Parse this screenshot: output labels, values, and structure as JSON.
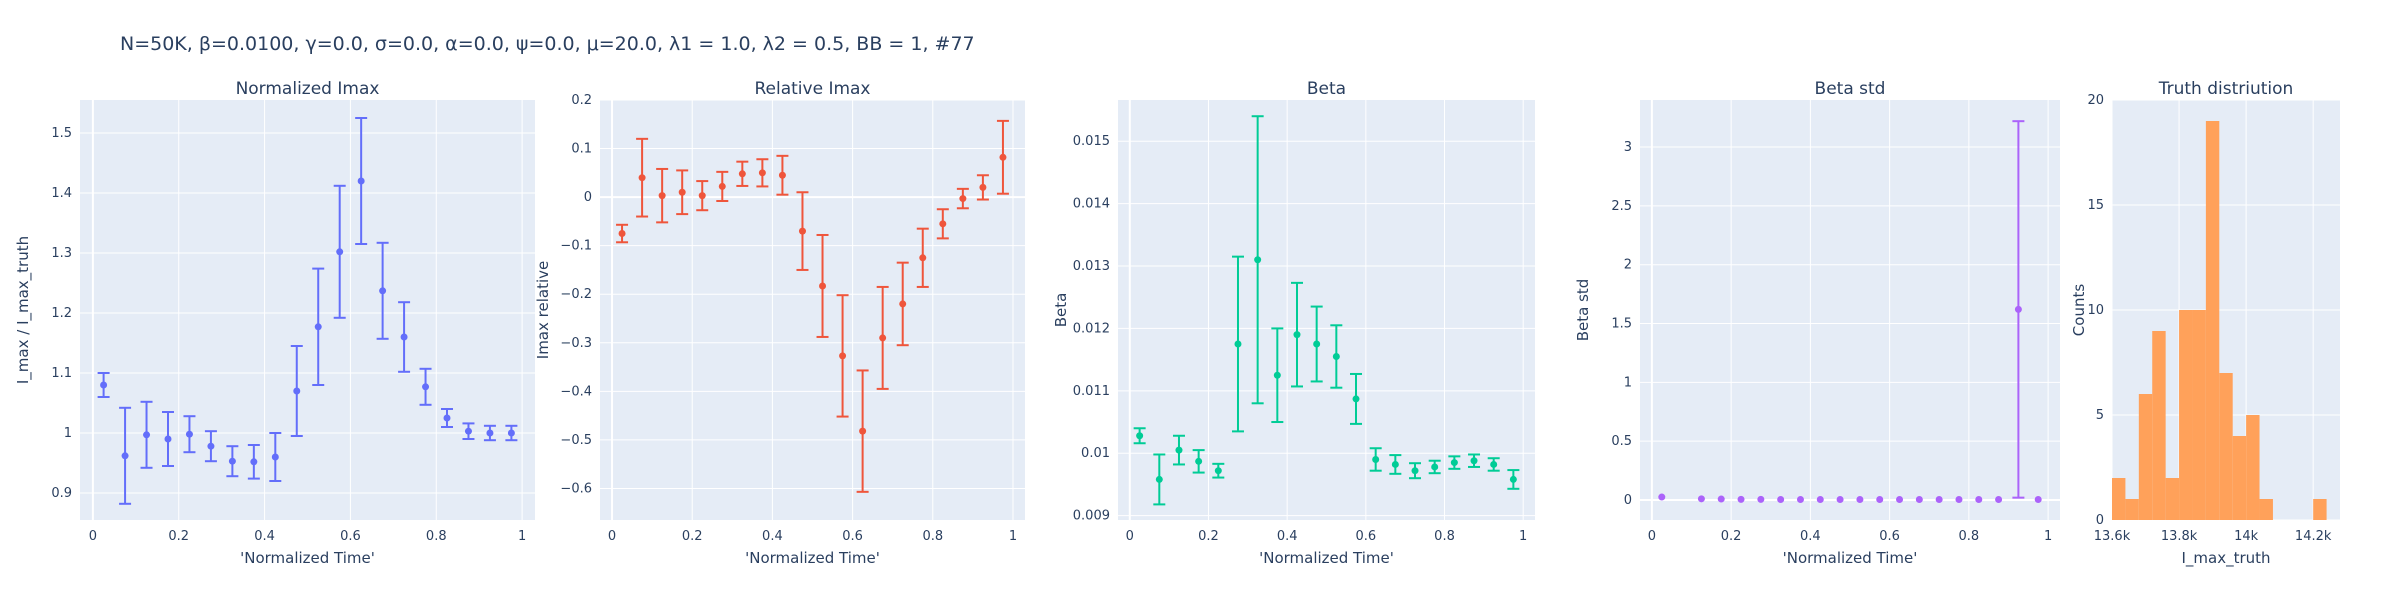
{
  "figure_title": "N=50K, β=0.0100, γ=0.0, σ=0.0,  α=0.0, ψ=0.0, μ=20.0, λ1 = 1.0, λ2 = 0.5, BB = 1, #77",
  "chart_data": [
    {
      "type": "scatter",
      "title": "Normalized Imax",
      "xlabel": "'Normalized Time'",
      "ylabel": "I_max / I_max_truth",
      "color": "#636efa",
      "xlim": [
        -0.03,
        1.03
      ],
      "ylim": [
        0.855,
        1.555
      ],
      "xticks": [
        0,
        0.2,
        0.4,
        0.6,
        0.8,
        1
      ],
      "xticklabels": [
        "0",
        "0.2",
        "0.4",
        "0.6",
        "0.8",
        "1"
      ],
      "yticks": [
        0.9,
        1,
        1.1,
        1.2,
        1.3,
        1.4,
        1.5
      ],
      "yticklabels": [
        "0.9",
        "1",
        "1.1",
        "1.2",
        "1.3",
        "1.4",
        "1.5"
      ],
      "x": [
        0.025,
        0.075,
        0.125,
        0.175,
        0.225,
        0.275,
        0.325,
        0.375,
        0.425,
        0.475,
        0.525,
        0.575,
        0.625,
        0.675,
        0.725,
        0.775,
        0.825,
        0.875,
        0.925,
        0.975
      ],
      "y": [
        1.08,
        0.962,
        0.997,
        0.99,
        0.998,
        0.978,
        0.953,
        0.952,
        0.96,
        1.07,
        1.177,
        1.302,
        1.42,
        1.237,
        1.16,
        1.077,
        1.025,
        1.003,
        1.0,
        1.0
      ],
      "err": [
        0.02,
        0.08,
        0.055,
        0.045,
        0.03,
        0.025,
        0.025,
        0.028,
        0.04,
        0.075,
        0.097,
        0.11,
        0.105,
        0.08,
        0.058,
        0.03,
        0.015,
        0.013,
        0.012,
        0.012
      ]
    },
    {
      "type": "scatter",
      "title": "Relative Imax",
      "xlabel": "'Normalized Time'",
      "ylabel": "Imax relative",
      "color": "#ef553b",
      "xlim": [
        -0.03,
        1.03
      ],
      "ylim": [
        -0.665,
        0.2
      ],
      "xticks": [
        0,
        0.2,
        0.4,
        0.6,
        0.8,
        1
      ],
      "xticklabels": [
        "0",
        "0.2",
        "0.4",
        "0.6",
        "0.8",
        "1"
      ],
      "yticks": [
        -0.6,
        -0.5,
        -0.4,
        -0.3,
        -0.2,
        -0.1,
        0,
        0.1,
        0.2
      ],
      "yticklabels": [
        "−0.6",
        "−0.5",
        "−0.4",
        "−0.3",
        "−0.2",
        "−0.1",
        "0",
        "0.1",
        "0.2"
      ],
      "x": [
        0.025,
        0.075,
        0.125,
        0.175,
        0.225,
        0.275,
        0.325,
        0.375,
        0.425,
        0.475,
        0.525,
        0.575,
        0.625,
        0.675,
        0.725,
        0.775,
        0.825,
        0.875,
        0.925,
        0.975
      ],
      "y": [
        -0.075,
        0.04,
        0.003,
        0.01,
        0.003,
        0.022,
        0.048,
        0.05,
        0.045,
        -0.07,
        -0.183,
        -0.327,
        -0.482,
        -0.29,
        -0.22,
        -0.125,
        -0.055,
        -0.003,
        0.02,
        0.082
      ],
      "err": [
        0.018,
        0.08,
        0.055,
        0.045,
        0.03,
        0.03,
        0.025,
        0.028,
        0.04,
        0.08,
        0.105,
        0.125,
        0.125,
        0.105,
        0.085,
        0.06,
        0.03,
        0.02,
        0.025,
        0.075
      ]
    },
    {
      "type": "scatter",
      "title": "Beta",
      "xlabel": "'Normalized Time'",
      "ylabel": "Beta",
      "color": "#00cc96",
      "xlim": [
        -0.03,
        1.03
      ],
      "ylim": [
        0.00893,
        0.01566
      ],
      "xticks": [
        0,
        0.2,
        0.4,
        0.6,
        0.8,
        1
      ],
      "xticklabels": [
        "0",
        "0.2",
        "0.4",
        "0.6",
        "0.8",
        "1"
      ],
      "yticks": [
        0.009,
        0.01,
        0.011,
        0.012,
        0.013,
        0.014,
        0.015
      ],
      "yticklabels": [
        "0.009",
        "0.01",
        "0.011",
        "0.012",
        "0.013",
        "0.014",
        "0.015"
      ],
      "x": [
        0.025,
        0.075,
        0.125,
        0.175,
        0.225,
        0.275,
        0.325,
        0.375,
        0.425,
        0.475,
        0.525,
        0.575,
        0.625,
        0.675,
        0.725,
        0.775,
        0.825,
        0.875,
        0.925,
        0.975
      ],
      "y": [
        0.01028,
        0.00958,
        0.01005,
        0.00987,
        0.00972,
        0.01175,
        0.0131,
        0.01125,
        0.0119,
        0.01175,
        0.01155,
        0.01087,
        0.0099,
        0.00982,
        0.00972,
        0.00978,
        0.00985,
        0.00988,
        0.00982,
        0.00958
      ],
      "err": [
        0.00012,
        0.0004,
        0.00023,
        0.00018,
        0.00011,
        0.0014,
        0.0023,
        0.00075,
        0.00083,
        0.0006,
        0.0005,
        0.0004,
        0.00018,
        0.00015,
        0.00012,
        0.0001,
        0.0001,
        0.0001,
        0.0001,
        0.00015
      ]
    },
    {
      "type": "scatter",
      "title": "Beta std",
      "xlabel": "'Normalized Time'",
      "ylabel": "Beta std",
      "color": "#ab63fa",
      "xlim": [
        -0.03,
        1.03
      ],
      "ylim": [
        -0.17,
        3.4
      ],
      "xticks": [
        0,
        0.2,
        0.4,
        0.6,
        0.8,
        1
      ],
      "xticklabels": [
        "0",
        "0.2",
        "0.4",
        "0.6",
        "0.8",
        "1"
      ],
      "yticks": [
        0,
        0.5,
        1,
        1.5,
        2,
        2.5,
        3
      ],
      "yticklabels": [
        "0",
        "0.5",
        "1",
        "1.5",
        "2",
        "2.5",
        "3"
      ],
      "x": [
        0.025,
        0.125,
        0.175,
        0.225,
        0.275,
        0.325,
        0.375,
        0.425,
        0.475,
        0.525,
        0.575,
        0.625,
        0.675,
        0.725,
        0.775,
        0.825,
        0.875,
        0.925,
        0.975
      ],
      "y": [
        0.025,
        0.01,
        0.008,
        0.005,
        0.005,
        0.004,
        0.004,
        0.004,
        0.004,
        0.004,
        0.004,
        0.004,
        0.004,
        0.004,
        0.004,
        0.004,
        0.004,
        1.62,
        0.004
      ],
      "err": [
        0,
        0,
        0,
        0,
        0,
        0,
        0,
        0,
        0,
        0,
        0,
        0,
        0,
        0,
        0,
        0,
        0,
        1.6,
        0
      ]
    },
    {
      "type": "bar",
      "title": "Truth distriution",
      "xlabel": "I_max_truth",
      "ylabel": "Counts",
      "color": "#ffa15a",
      "xlim": [
        13600,
        14280
      ],
      "ylim": [
        0,
        20
      ],
      "xticks": [
        13600,
        13800,
        14000,
        14200
      ],
      "xticklabels": [
        "13.6k",
        "13.8k",
        "14k",
        "14.2k"
      ],
      "yticks": [
        0,
        5,
        10,
        15,
        20
      ],
      "yticklabels": [
        "0",
        "5",
        "10",
        "15",
        "20"
      ],
      "bin_width": 40,
      "bin_starts": [
        13600,
        13640,
        13680,
        13720,
        13760,
        13800,
        13840,
        13880,
        13920,
        13960,
        14000,
        14040,
        14080,
        14120,
        14160,
        14200,
        14240
      ],
      "values": [
        2,
        1,
        6,
        9,
        2,
        10,
        10,
        19,
        7,
        4,
        5,
        1,
        0,
        0,
        0,
        1,
        0
      ]
    }
  ]
}
